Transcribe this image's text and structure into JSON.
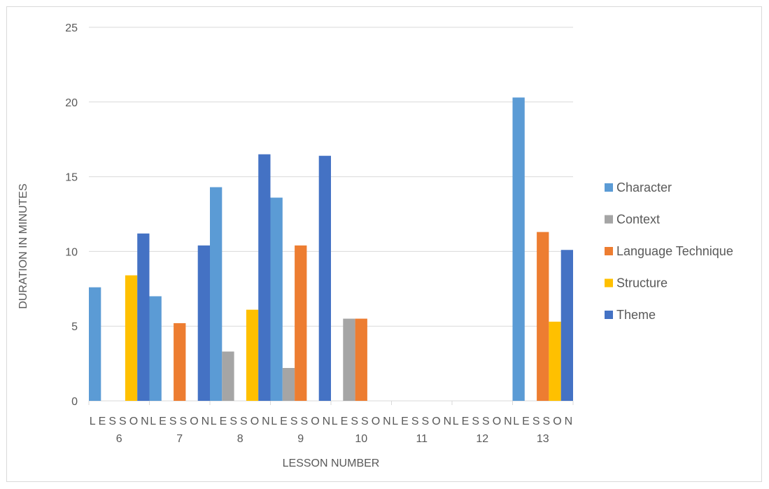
{
  "colors": {
    "Character": "#5b9bd5",
    "Context": "#a5a5a5",
    "Language Technique": "#ed7d31",
    "Structure": "#ffc000",
    "Theme": "#4472c4",
    "grid": "#d9d9d9",
    "text": "#595959"
  },
  "chart_data": {
    "type": "bar",
    "title": "",
    "xlabel": "LESSON NUMBER",
    "ylabel": "DURATION IN MINUTES",
    "ylim": [
      0,
      25
    ],
    "yticks": [
      0,
      5,
      10,
      15,
      20,
      25
    ],
    "grid": true,
    "legend_position": "right",
    "legend": [
      "Character",
      "Context",
      "Language Technique",
      "Structure",
      "Theme"
    ],
    "categories": [
      {
        "line1": "LESSON",
        "line2": "6"
      },
      {
        "line1": "LESSON",
        "line2": "7"
      },
      {
        "line1": "LESSON",
        "line2": "8"
      },
      {
        "line1": "LESSON",
        "line2": "9"
      },
      {
        "line1": "LESSON",
        "line2": "10"
      },
      {
        "line1": "LESSON",
        "line2": "11"
      },
      {
        "line1": "LESSON",
        "line2": "12"
      },
      {
        "line1": "LESSON",
        "line2": "13"
      }
    ],
    "bars": [
      {
        "series": "Character",
        "category": 0,
        "slot": 0,
        "value": 7.6
      },
      {
        "series": "Structure",
        "category": 0,
        "slot": 3,
        "value": 8.4
      },
      {
        "series": "Theme",
        "category": 0,
        "slot": 4,
        "value": 11.2
      },
      {
        "series": "Character",
        "category": 1,
        "slot": 0,
        "value": 7.0
      },
      {
        "series": "Language Technique",
        "category": 1,
        "slot": 2,
        "value": 5.2
      },
      {
        "series": "Theme",
        "category": 1,
        "slot": 4,
        "value": 10.4
      },
      {
        "series": "Character",
        "category": 2,
        "slot": 0,
        "value": 14.3
      },
      {
        "series": "Context",
        "category": 2,
        "slot": 1,
        "value": 3.3
      },
      {
        "series": "Structure",
        "category": 2,
        "slot": 3,
        "value": 6.1
      },
      {
        "series": "Theme",
        "category": 2,
        "slot": 4,
        "value": 16.5
      },
      {
        "series": "Character",
        "category": 3,
        "slot": 0,
        "value": 13.6
      },
      {
        "series": "Context",
        "category": 3,
        "slot": 1,
        "value": 2.2
      },
      {
        "series": "Language Technique",
        "category": 3,
        "slot": 2,
        "value": 10.4
      },
      {
        "series": "Theme",
        "category": 3,
        "slot": 4,
        "value": 16.4
      },
      {
        "series": "Context",
        "category": 4,
        "slot": 1,
        "value": 5.5
      },
      {
        "series": "Language Technique",
        "category": 4,
        "slot": 2,
        "value": 5.5
      },
      {
        "series": "Character",
        "category": 7,
        "slot": 0,
        "value": 20.3
      },
      {
        "series": "Language Technique",
        "category": 7,
        "slot": 2,
        "value": 11.3
      },
      {
        "series": "Structure",
        "category": 7,
        "slot": 3,
        "value": 5.3
      },
      {
        "series": "Theme",
        "category": 7,
        "slot": 4,
        "value": 10.1
      }
    ]
  }
}
